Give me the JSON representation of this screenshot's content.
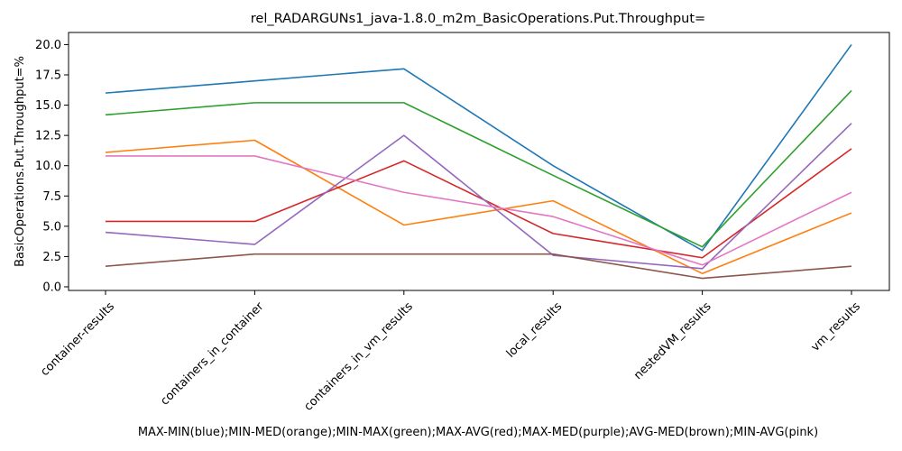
{
  "chart_data": {
    "type": "line",
    "title": "rel_RADARGUNs1_java-1.8.0_m2m_BasicOperations.Put.Throughput=",
    "xlabel": "MAX-MIN(blue);MIN-MED(orange);MIN-MAX(green);MAX-AVG(red);MAX-MED(purple);AVG-MED(brown);MIN-AVG(pink)",
    "ylabel": "BasicOperations.Put.Throughput=%",
    "categories": [
      "container-results",
      "containers_in_container",
      "containers_in_vm_results",
      "local_results",
      "nestedVM_results",
      "vm_results"
    ],
    "ylim": [
      -0.3,
      21.0
    ],
    "yticks": [
      "0.0",
      "2.5",
      "5.0",
      "7.5",
      "10.0",
      "12.5",
      "15.0",
      "17.5",
      "20.0"
    ],
    "grid": false,
    "series": [
      {
        "color": "#1f77b4",
        "values": [
          16.0,
          17.0,
          18.0,
          10.0,
          3.0,
          20.0
        ]
      },
      {
        "color": "#ff7f0e",
        "values": [
          11.1,
          12.1,
          5.1,
          7.1,
          1.1,
          6.1
        ]
      },
      {
        "color": "#2ca02c",
        "values": [
          14.2,
          15.2,
          15.2,
          9.2,
          3.3,
          16.2
        ]
      },
      {
        "color": "#d62728",
        "values": [
          5.4,
          5.4,
          10.4,
          4.4,
          2.4,
          11.4
        ]
      },
      {
        "color": "#9467bd",
        "values": [
          4.5,
          3.5,
          12.5,
          2.6,
          1.5,
          13.5
        ]
      },
      {
        "color": "#8c564b",
        "values": [
          1.7,
          2.7,
          2.7,
          2.7,
          0.7,
          1.7
        ]
      },
      {
        "color": "#e377c2",
        "values": [
          10.8,
          10.8,
          7.8,
          5.8,
          1.8,
          7.8
        ]
      }
    ]
  }
}
